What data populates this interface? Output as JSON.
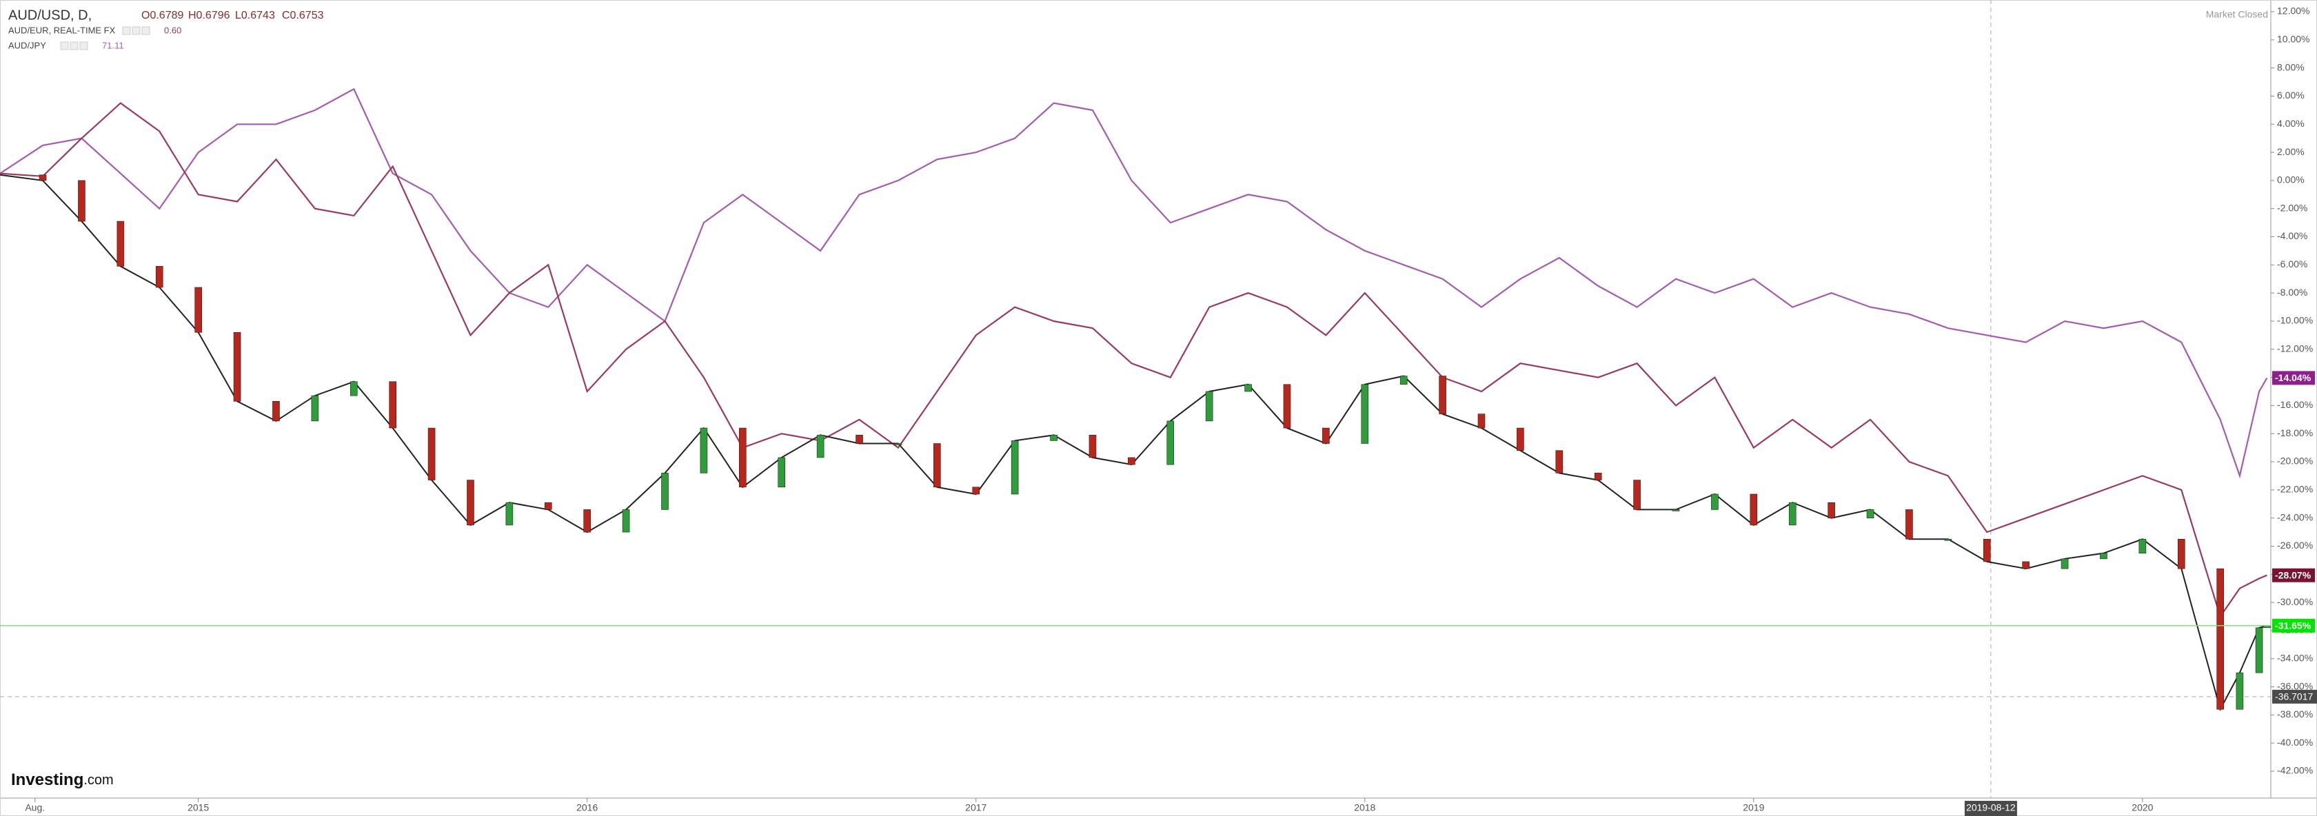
{
  "chart_data": {
    "type": "line",
    "header": {
      "main": "AUD/USD, D,",
      "ohlc": [
        "O0.6789",
        "H0.6796",
        "L0.6743",
        "C0.6753"
      ]
    },
    "status": "Market Closed",
    "brand": "Investing",
    "brand_suffix": ".com",
    "x": [
      2014.49,
      2014.6,
      2014.7,
      2014.8,
      2014.9,
      2015.0,
      2015.1,
      2015.2,
      2015.3,
      2015.4,
      2015.5,
      2015.6,
      2015.7,
      2015.8,
      2015.9,
      2016.0,
      2016.1,
      2016.2,
      2016.3,
      2016.4,
      2016.5,
      2016.6,
      2016.7,
      2016.8,
      2016.9,
      2017.0,
      2017.1,
      2017.2,
      2017.3,
      2017.4,
      2017.5,
      2017.6,
      2017.7,
      2017.8,
      2017.9,
      2018.0,
      2018.1,
      2018.2,
      2018.3,
      2018.4,
      2018.5,
      2018.6,
      2018.7,
      2018.8,
      2018.9,
      2019.0,
      2019.1,
      2019.2,
      2019.3,
      2019.4,
      2019.5,
      2019.6,
      2019.7,
      2019.8,
      2019.9,
      2020.0,
      2020.1,
      2020.2,
      2020.25,
      2020.3,
      2020.32
    ],
    "series": [
      {
        "name": "AUD/USD, D,",
        "style": "candles",
        "color": "#222222",
        "up_color": "#2f9e3a",
        "down_color": "#b8261c",
        "last_label": "-31.65%",
        "badge_color": "#00e600",
        "values": [
          0.4,
          0,
          -2.9,
          -6.1,
          -7.6,
          -10.8,
          -15.7,
          -17.1,
          -15.3,
          -14.3,
          -17.6,
          -21.3,
          -24.5,
          -22.9,
          -23.4,
          -25,
          -23.4,
          -20.8,
          -17.6,
          -21.8,
          -19.7,
          -18.1,
          -18.7,
          -18.7,
          -21.8,
          -22.3,
          -18.5,
          -18.1,
          -19.7,
          -20.2,
          -17.1,
          -15,
          -14.5,
          -17.6,
          -18.7,
          -14.5,
          -13.9,
          -16.6,
          -17.6,
          -19.2,
          -20.8,
          -21.3,
          -23.4,
          -23.4,
          -22.3,
          -24.5,
          -22.9,
          -24,
          -23.4,
          -25.5,
          -25.5,
          -27.1,
          -27.6,
          -26.9,
          -26.5,
          -25.5,
          -27.6,
          -37.6,
          -35,
          -31.8,
          -31.65
        ]
      },
      {
        "name": "AUD/EUR, REAL-TIME FX",
        "price": "0.60",
        "color": "#9b3a58",
        "last_label": "-28.07%",
        "badge_color": "#7a1230",
        "values": [
          0.5,
          0.3,
          3,
          5.5,
          3.5,
          -1,
          -1.5,
          1.5,
          -2,
          -2.5,
          1,
          -5,
          -11,
          -8,
          -6,
          -15,
          -12,
          -10,
          -14,
          -19,
          -18,
          -18.5,
          -17,
          -19,
          -15,
          -11,
          -9,
          -10,
          -10.5,
          -13,
          -14,
          -9,
          -8,
          -9,
          -11,
          -8,
          -11,
          -14,
          -15,
          -13,
          -13.5,
          -14,
          -13,
          -16,
          -14,
          -19,
          -17,
          -19,
          -17,
          -20,
          -21,
          -25,
          -24,
          -23,
          -22,
          -21,
          -22,
          -31,
          -29,
          -28.3,
          -28.07
        ]
      },
      {
        "name": "AUD/JPY",
        "price": "71.11",
        "color": "#a55ab2",
        "last_label": "-14.04%",
        "badge_color": "#8e1f8e",
        "values": [
          0.5,
          2.5,
          3,
          0.5,
          -2,
          2,
          4,
          4,
          5,
          6.5,
          0.5,
          -1,
          -5,
          -8,
          -9,
          -6,
          -8,
          -10,
          -3,
          -1,
          -3,
          -5,
          -1,
          0,
          1.5,
          2,
          3,
          5.5,
          5,
          0,
          -3,
          -2,
          -1,
          -1.5,
          -3.5,
          -5,
          -6,
          -7,
          -9,
          -7,
          -5.5,
          -7.5,
          -9,
          -7,
          -8,
          -7,
          -9,
          -8,
          -9,
          -9.5,
          -10.5,
          -11,
          -11.5,
          -10,
          -10.5,
          -10,
          -11.5,
          -17,
          -21,
          -15,
          -14.04
        ]
      }
    ],
    "crosshair": {
      "x": 2019.61,
      "x_label": "2019-08-12",
      "y": -36.7017
    },
    "xlim": [
      2014.49,
      2020.33
    ],
    "xticks": [
      {
        "value": 2014.58,
        "label": "Aug."
      },
      2015,
      2016,
      2017,
      2018,
      2019,
      2020
    ],
    "ylim": [
      -42,
      12
    ],
    "yticks": [
      {
        "value": 12,
        "label": "12.00%"
      },
      {
        "value": 10,
        "label": "10.00%"
      },
      {
        "value": 8,
        "label": "8.00%"
      },
      {
        "value": 6,
        "label": "6.00%"
      },
      {
        "value": 4,
        "label": "4.00%"
      },
      {
        "value": 2,
        "label": "2.00%"
      },
      {
        "value": 0,
        "label": "0.00%"
      },
      {
        "value": -2,
        "label": "-2.00%"
      },
      {
        "value": -4,
        "label": "-4.00%"
      },
      {
        "value": -6,
        "label": "-6.00%"
      },
      {
        "value": -8,
        "label": "-8.00%"
      },
      {
        "value": -10,
        "label": "-10.00%"
      },
      {
        "value": -12,
        "label": "-12.00%"
      },
      {
        "value": -14,
        "label": "-14.00%"
      },
      {
        "value": -16,
        "label": "-16.00%"
      },
      {
        "value": -18,
        "label": "-18.00%"
      },
      {
        "value": -20,
        "label": "-20.00%"
      },
      {
        "value": -22,
        "label": "-22.00%"
      },
      {
        "value": -24,
        "label": "-24.00%"
      },
      {
        "value": -26,
        "label": "-26.00%"
      },
      {
        "value": -28,
        "label": "-28.00%"
      },
      {
        "value": -30,
        "label": "-30.00%"
      },
      {
        "value": -32,
        "label": "-32.00%"
      },
      {
        "value": -34,
        "label": "-34.00%"
      },
      {
        "value": -36,
        "label": "-36.00%"
      },
      {
        "value": -38,
        "label": "-38.00%"
      },
      {
        "value": -40,
        "label": "-40.00%"
      },
      {
        "value": -42,
        "label": "-42.00%"
      }
    ],
    "grid": false
  }
}
